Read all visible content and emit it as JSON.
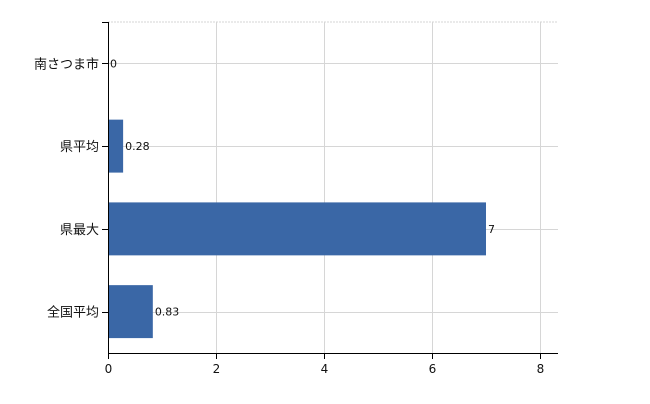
{
  "chart_data": {
    "type": "bar",
    "orientation": "horizontal",
    "categories": [
      "南さつま市",
      "県平均",
      "県最大",
      "全国平均"
    ],
    "values": [
      0,
      0.28,
      7,
      0.83
    ],
    "data_labels": [
      "0",
      "0.28",
      "7",
      "0.83"
    ],
    "title": "",
    "xlabel": "",
    "ylabel": "",
    "xlim": [
      0,
      8.4
    ],
    "x_ticks": [
      0,
      2,
      4,
      6,
      8
    ],
    "x_tick_labels": [
      "0",
      "2",
      "4",
      "6",
      "8"
    ],
    "grid": true,
    "legend": "none",
    "bar_color": "#3a67a6",
    "grid_color": "#d6d6d6",
    "axis_color": "#000000"
  }
}
